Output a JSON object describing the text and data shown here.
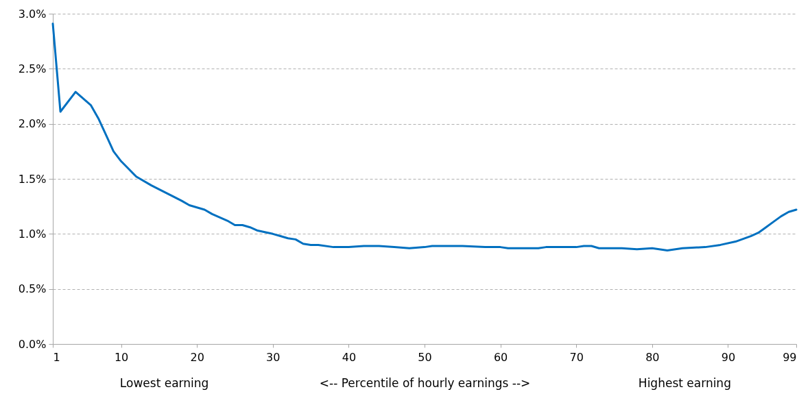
{
  "chart_data": {
    "type": "line",
    "xlabel": "<-- Percentile of hourly earnings -->",
    "annotations": [
      "Lowest earning",
      "Highest earning"
    ],
    "x": [
      1,
      2,
      4,
      6,
      7,
      8,
      9,
      10,
      11,
      12,
      14,
      16,
      18,
      19,
      20,
      21,
      22,
      24,
      25,
      26,
      27,
      28,
      30,
      31,
      32,
      33,
      34,
      35,
      36,
      38,
      40,
      42,
      44,
      46,
      48,
      50,
      51,
      55,
      58,
      60,
      61,
      65,
      66,
      70,
      71,
      72,
      73,
      76,
      78,
      80,
      82,
      84,
      87,
      89,
      91,
      93,
      94,
      95,
      96,
      97,
      98,
      99
    ],
    "series": [
      {
        "color": "#0070c0",
        "values": [
          2.91,
          2.11,
          2.29,
          2.17,
          2.05,
          1.9,
          1.75,
          1.66,
          1.59,
          1.52,
          1.44,
          1.37,
          1.3,
          1.26,
          1.24,
          1.22,
          1.18,
          1.12,
          1.08,
          1.08,
          1.06,
          1.03,
          1.0,
          0.98,
          0.96,
          0.95,
          0.91,
          0.9,
          0.9,
          0.88,
          0.88,
          0.89,
          0.89,
          0.88,
          0.87,
          0.88,
          0.89,
          0.89,
          0.88,
          0.88,
          0.87,
          0.87,
          0.88,
          0.88,
          0.89,
          0.89,
          0.87,
          0.87,
          0.86,
          0.87,
          0.85,
          0.87,
          0.88,
          0.9,
          0.93,
          0.98,
          1.01,
          1.06,
          1.11,
          1.16,
          1.2,
          1.22
        ]
      }
    ],
    "xlim": [
      1,
      99
    ],
    "xticks": [
      1,
      10,
      20,
      30,
      40,
      50,
      60,
      70,
      80,
      90,
      99
    ],
    "ylim": [
      0,
      3
    ],
    "yticks": [
      {
        "value": 0,
        "label": "0.0%"
      },
      {
        "value": 0.5,
        "label": "0.5%"
      },
      {
        "value": 1,
        "label": "1.0%"
      },
      {
        "value": 1.5,
        "label": "1.5%"
      },
      {
        "value": 2,
        "label": "2.0%"
      },
      {
        "value": 2.5,
        "label": "2.5%"
      },
      {
        "value": 3,
        "label": "3.0%"
      }
    ],
    "grid": "y",
    "marker": "none",
    "line_style": "solid"
  }
}
